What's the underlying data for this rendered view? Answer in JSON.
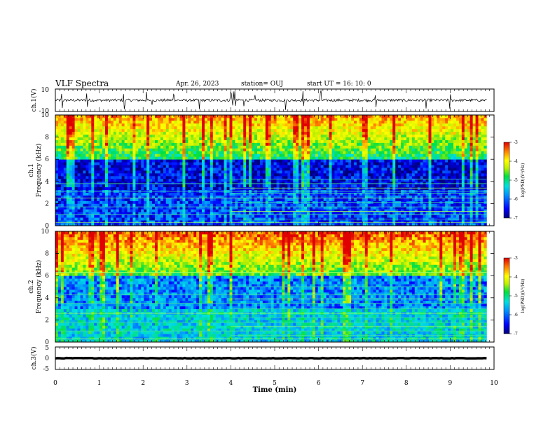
{
  "header": {
    "title": "VLF Spectra",
    "date": "Apr. 26, 2023",
    "station": "station= OUJ",
    "start_ut": "start  UT =   16: 10: 0"
  },
  "colors": {
    "colormap": [
      "#00007a",
      "#0000ff",
      "#0090ff",
      "#00e0e0",
      "#00e040",
      "#c0f000",
      "#ffff00",
      "#ff8000",
      "#e00000"
    ],
    "trace": "#000000"
  },
  "chart_data": [
    {
      "type": "line",
      "panel": "waveform-ch1",
      "ylabel": "ch.1(V)",
      "ylim": [
        -10,
        10
      ],
      "yticks": [
        "10",
        "-10"
      ],
      "xlim": [
        0,
        9.83
      ],
      "mean_value": 0,
      "noise_amplitude": 1.2,
      "spikes_min": [
        0.15,
        0.72,
        1.55,
        1.58,
        2.08,
        2.2,
        2.7,
        3.28,
        4.0,
        4.05,
        4.1,
        4.3,
        4.55,
        5.25,
        5.65,
        6.05,
        7.3,
        8.45,
        9.0
      ]
    },
    {
      "type": "heatmap",
      "panel": "spectrogram-ch1",
      "ylabel": "Frequency (kHz)",
      "channel_label": "ch.1",
      "ylim": [
        0,
        10
      ],
      "yticks": [
        "0",
        "2",
        "4",
        "6",
        "8",
        "10"
      ],
      "colorbar": {
        "label": "log(PSD)(V²/Hz)",
        "range": [
          -7,
          -3
        ],
        "ticks": [
          "-3",
          "-4",
          "-5",
          "-6",
          "-7"
        ]
      },
      "description_of_intensity": {
        "high_band_kHz": [
          6,
          10
        ],
        "high_band_log_psd": -3.6,
        "quiet_band_kHz": [
          3.2,
          5.5
        ],
        "quiet_band_log_psd": -6.6,
        "low_band_kHz": [
          0,
          3.2
        ],
        "low_band_log_psd": -6.3
      },
      "tone_lines_kHz": [
        0.3,
        0.6,
        1.0,
        1.3,
        1.7,
        2.1,
        2.5,
        2.9,
        3.1,
        3.4,
        3.8,
        4.2
      ],
      "tone_switch_min": 4.0
    },
    {
      "type": "heatmap",
      "panel": "spectrogram-ch2",
      "ylabel": "Frequency (kHz)",
      "channel_label": "ch.2",
      "ylim": [
        0,
        10
      ],
      "yticks": [
        "0",
        "2",
        "4",
        "6",
        "8",
        "10"
      ],
      "colorbar": {
        "label": "log(PSD)(V²/Hz)",
        "range": [
          -7,
          -3
        ],
        "ticks": [
          "-3",
          "-4",
          "-5",
          "-6",
          "-7"
        ]
      },
      "description_of_intensity": {
        "high_band_kHz": [
          6,
          10
        ],
        "high_band_log_psd": -3.3,
        "quiet_band_kHz": [
          3.0,
          5.5
        ],
        "quiet_band_log_psd": -6.0,
        "low_band_kHz": [
          0,
          3.0
        ],
        "low_band_log_psd": -5.6
      },
      "tone_lines_kHz": [
        0.3,
        0.6,
        1.0,
        1.4,
        1.8,
        2.2,
        2.6,
        3.0,
        3.5,
        3.9,
        4.3,
        5.0,
        6.3
      ],
      "tone_switch_min": 4.0
    },
    {
      "type": "line",
      "panel": "waveform-ch3",
      "ylabel": "ch.3(V)",
      "ylim": [
        -5,
        5
      ],
      "yticks": [
        "5",
        "0",
        "-5"
      ],
      "xlim": [
        0,
        9.83
      ],
      "mean_value": 0,
      "noise_amplitude": 0.25
    }
  ],
  "xaxis": {
    "label": "Time (min)",
    "range": [
      0,
      10
    ],
    "ticks": [
      "0",
      "1",
      "2",
      "3",
      "4",
      "5",
      "6",
      "7",
      "8",
      "9",
      "10"
    ]
  }
}
